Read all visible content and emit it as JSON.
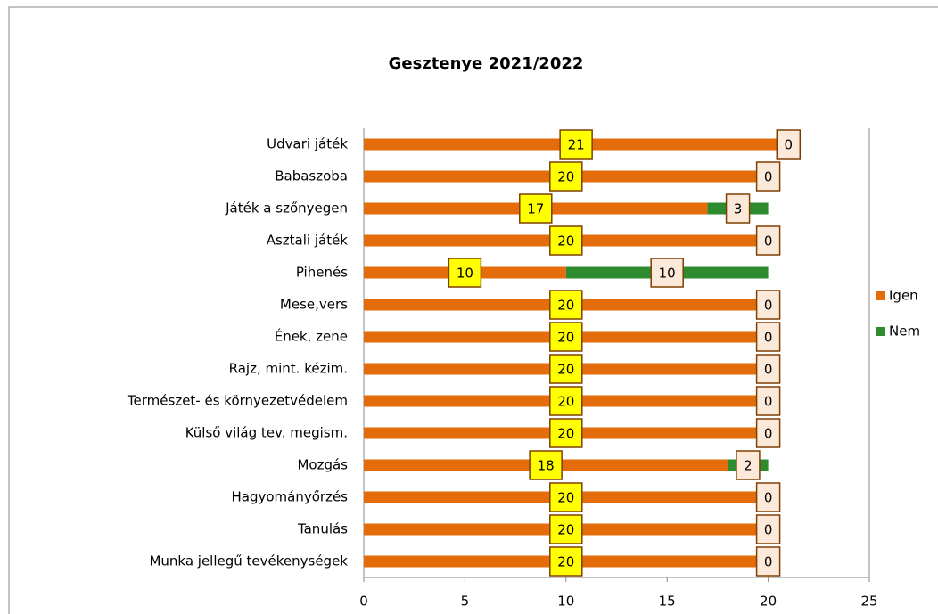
{
  "chart_data": {
    "type": "stacked-bar",
    "orientation": "horizontal",
    "title": "Gesztenye 2021/2022",
    "categories": [
      "Udvari játék",
      "Babaszoba",
      "Játék a szőnyegen",
      "Asztali játék",
      "Pihenés",
      "Mese,vers",
      "Ének, zene",
      "Rajz, mint. kézim.",
      "Természet- és környezetvédelem",
      "Külső világ tev. megism.",
      "Mozgás",
      "Hagyományőrzés",
      "Tanulás",
      "Munka jellegű tevékenységek"
    ],
    "series": [
      {
        "name": "Igen",
        "color": "#e46c0a",
        "label_fill": "#ffff00",
        "values": [
          21,
          20,
          17,
          20,
          10,
          20,
          20,
          20,
          20,
          20,
          18,
          20,
          20,
          20
        ]
      },
      {
        "name": "Nem",
        "color": "#2e8b2e",
        "label_fill": "#fde9d9",
        "values": [
          0,
          0,
          3,
          0,
          10,
          0,
          0,
          0,
          0,
          0,
          2,
          0,
          0,
          0
        ]
      }
    ],
    "xlim": [
      0,
      25
    ],
    "xticks": [
      0,
      5,
      10,
      15,
      20,
      25
    ],
    "legend": "right"
  }
}
